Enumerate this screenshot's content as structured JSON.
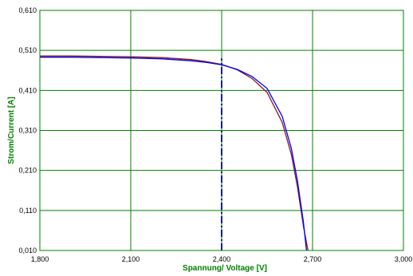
{
  "chart_data": {
    "type": "line",
    "title": "",
    "xlabel": "Spannung/ Voltage [V]",
    "ylabel": "Strom/Current [A]",
    "xlim": [
      1.8,
      3.0
    ],
    "ylim": [
      0.01,
      0.61
    ],
    "x_ticks": [
      1.8,
      2.1,
      2.4,
      2.7,
      3.0
    ],
    "x_tick_labels": [
      "1,800",
      "2,100",
      "2,400",
      "2,700",
      "3,000"
    ],
    "y_ticks": [
      0.01,
      0.11,
      0.21,
      0.31,
      0.41,
      0.51,
      0.61
    ],
    "y_tick_labels": [
      "0,010",
      "0,110",
      "0,210",
      "0,310",
      "0,410",
      "0,510",
      "0,610"
    ],
    "grid": true,
    "legend": "none",
    "series": [
      {
        "color": "#8b1a1a",
        "style": "solid",
        "x": [
          1.8,
          1.9,
          2.0,
          2.1,
          2.2,
          2.3,
          2.35,
          2.4,
          2.45,
          2.5,
          2.55,
          2.6,
          2.63,
          2.65,
          2.67,
          2.685
        ],
        "y": [
          0.496,
          0.496,
          0.495,
          0.494,
          0.492,
          0.487,
          0.482,
          0.475,
          0.462,
          0.44,
          0.405,
          0.33,
          0.25,
          0.17,
          0.07,
          0.01
        ]
      },
      {
        "color": "#0000ff",
        "style": "solid",
        "x": [
          1.8,
          1.9,
          2.0,
          2.1,
          2.2,
          2.3,
          2.35,
          2.4,
          2.45,
          2.5,
          2.55,
          2.6,
          2.63,
          2.65,
          2.67,
          2.68
        ],
        "y": [
          0.493,
          0.493,
          0.492,
          0.491,
          0.489,
          0.484,
          0.48,
          0.474,
          0.463,
          0.445,
          0.415,
          0.345,
          0.265,
          0.185,
          0.08,
          0.01
        ]
      },
      {
        "color": "#1c1c8c",
        "style": "dashdot",
        "x": [
          2.4,
          2.4
        ],
        "y": [
          0.01,
          0.49
        ]
      }
    ]
  }
}
